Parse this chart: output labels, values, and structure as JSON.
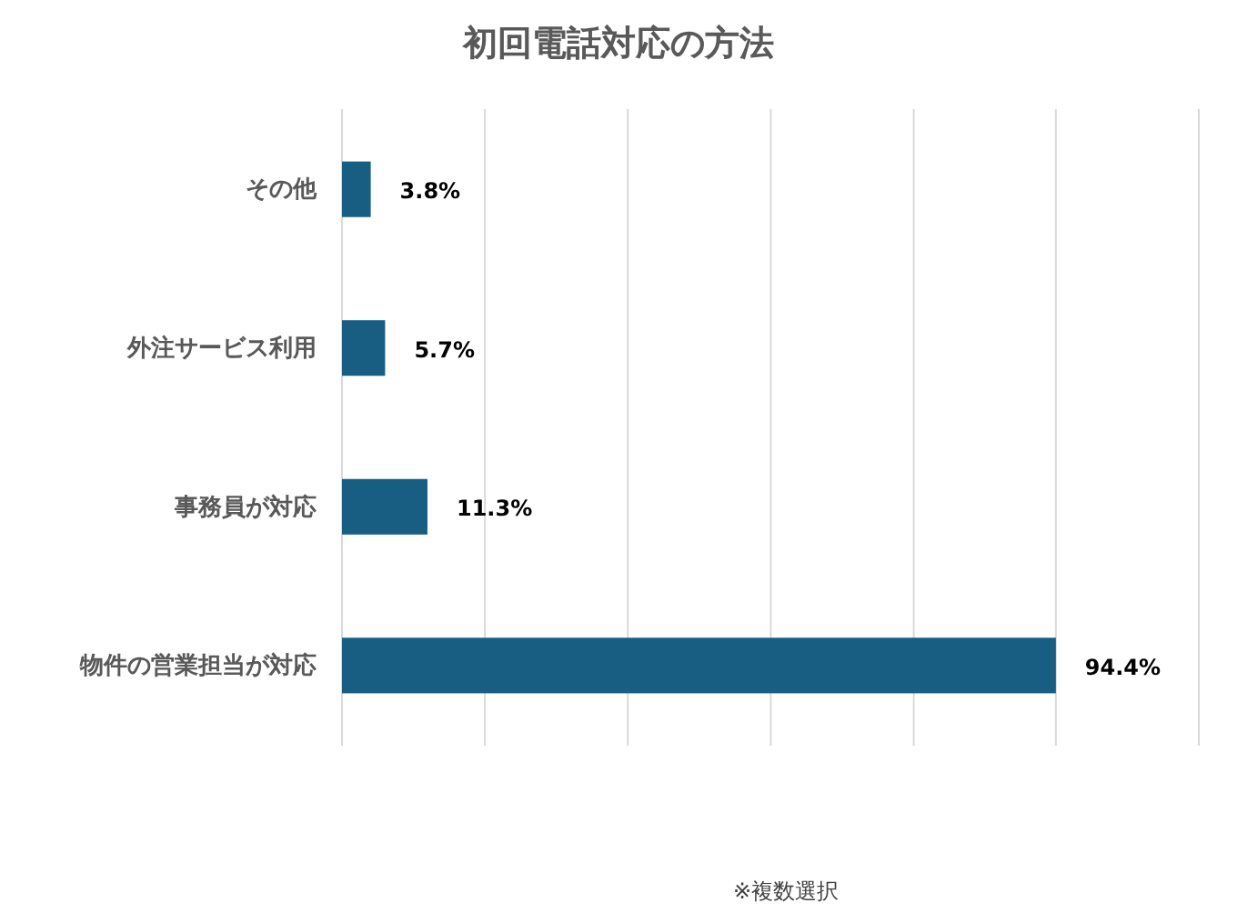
{
  "chart_data": {
    "type": "bar",
    "orientation": "horizontal",
    "title": "初回電話対応の方法",
    "categories": [
      "その他",
      "外注サービス利用",
      "事務員が対応",
      "物件の営業担当が対応"
    ],
    "values": [
      3.8,
      5.7,
      11.3,
      94.4
    ],
    "color": "#175e82",
    "data_labels": true,
    "value_labels": [
      "3.8%",
      "5.7%",
      "11.3%",
      "94.4%"
    ],
    "xlim": [
      0,
      113.3
    ],
    "xticks": [
      {
        "value": 0,
        "label": null
      },
      {
        "value": 18.9,
        "label": null
      },
      {
        "value": 37.8,
        "label": null
      },
      {
        "value": 56.7,
        "label": null
      },
      {
        "value": 75.6,
        "label": null
      },
      {
        "value": 94.4,
        "label": null
      },
      {
        "value": 113.3,
        "label": null
      }
    ],
    "grid": "x",
    "tick_labels": "y",
    "annotations": [
      "※複数選択"
    ]
  }
}
